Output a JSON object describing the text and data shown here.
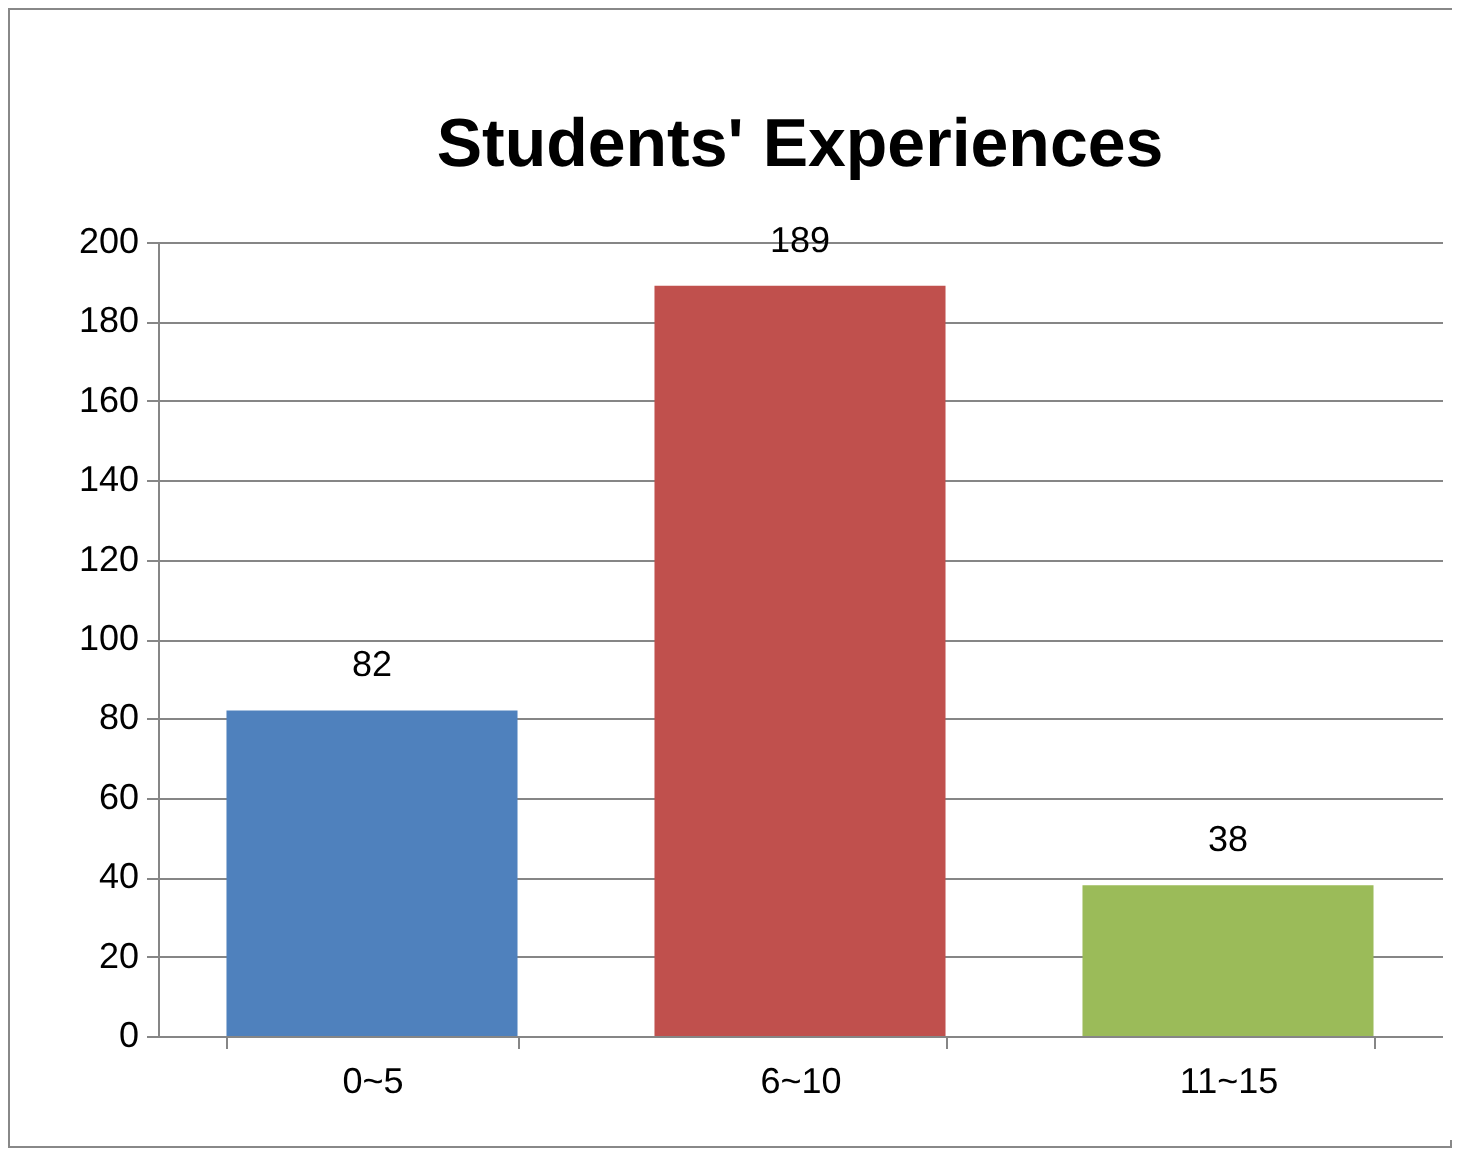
{
  "chart_data": {
    "type": "bar",
    "title": "Students' Experiences",
    "categories": [
      "0~5",
      "6~10",
      "11~15"
    ],
    "values": [
      82,
      189,
      38
    ],
    "colors": [
      "#4f81bd",
      "#c0504d",
      "#9bbb59"
    ],
    "ylim": [
      0,
      200
    ],
    "yticks": [
      0,
      20,
      40,
      60,
      80,
      100,
      120,
      140,
      160,
      180,
      200
    ],
    "grid": "y",
    "data_labels": true
  }
}
